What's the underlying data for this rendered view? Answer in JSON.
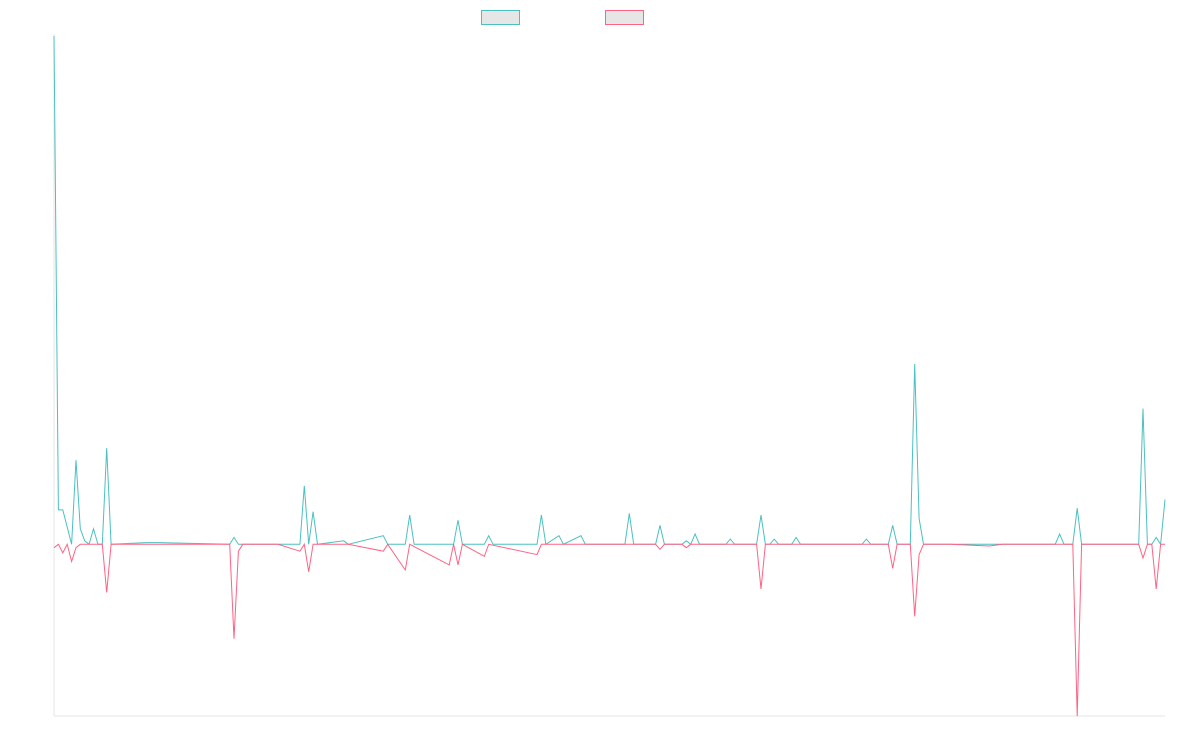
{
  "chart_data": {
    "type": "line",
    "title": "",
    "xlabel": "",
    "ylabel": "",
    "legend": "top-center",
    "grid": false,
    "ylim": [
      -100,
      296
    ],
    "xlim": [
      0,
      253
    ],
    "series": [
      {
        "color": "#4bc0c0",
        "fill": "none",
        "legend_fill": "#e6e6e6",
        "points": [
          [
            0,
            296
          ],
          [
            1,
            20
          ],
          [
            2,
            20
          ],
          [
            4,
            0
          ],
          [
            5,
            49
          ],
          [
            6,
            9
          ],
          [
            7,
            2
          ],
          [
            8,
            0
          ],
          [
            9,
            9
          ],
          [
            10,
            0
          ],
          [
            11,
            0
          ],
          [
            12,
            56
          ],
          [
            13,
            0
          ],
          [
            21,
            1
          ],
          [
            24,
            1
          ],
          [
            40,
            0
          ],
          [
            41,
            4
          ],
          [
            42,
            0
          ],
          [
            51,
            0
          ],
          [
            56,
            0
          ],
          [
            57,
            34
          ],
          [
            58,
            0
          ],
          [
            59,
            19
          ],
          [
            60,
            0
          ],
          [
            66,
            2
          ],
          [
            67,
            0
          ],
          [
            75,
            5
          ],
          [
            76,
            0
          ],
          [
            80,
            0
          ],
          [
            81,
            17
          ],
          [
            82,
            0
          ],
          [
            90,
            0
          ],
          [
            91,
            0
          ],
          [
            92,
            14
          ],
          [
            93,
            0
          ],
          [
            98,
            0
          ],
          [
            99,
            5
          ],
          [
            100,
            0
          ],
          [
            110,
            0
          ],
          [
            111,
            17
          ],
          [
            112,
            0
          ],
          [
            115,
            5
          ],
          [
            116,
            0
          ],
          [
            120,
            5
          ],
          [
            121,
            0
          ],
          [
            126,
            0
          ],
          [
            130,
            0
          ],
          [
            131,
            18
          ],
          [
            132,
            0
          ],
          [
            137,
            0
          ],
          [
            138,
            11
          ],
          [
            139,
            0
          ],
          [
            141,
            0
          ],
          [
            143,
            0
          ],
          [
            144,
            2
          ],
          [
            145,
            0
          ],
          [
            146,
            6
          ],
          [
            147,
            0
          ],
          [
            148,
            0
          ],
          [
            149,
            0
          ],
          [
            153,
            0
          ],
          [
            154,
            3
          ],
          [
            155,
            0
          ],
          [
            160,
            0
          ],
          [
            161,
            17
          ],
          [
            162,
            0
          ],
          [
            163,
            0
          ],
          [
            164,
            3
          ],
          [
            165,
            0
          ],
          [
            168,
            0
          ],
          [
            169,
            4
          ],
          [
            170,
            0
          ],
          [
            179,
            0
          ],
          [
            184,
            0
          ],
          [
            185,
            3
          ],
          [
            186,
            0
          ],
          [
            190,
            0
          ],
          [
            191,
            11
          ],
          [
            192,
            0
          ],
          [
            193,
            0
          ],
          [
            195,
            0
          ],
          [
            196,
            105
          ],
          [
            197,
            15
          ],
          [
            198,
            0
          ],
          [
            204,
            0
          ],
          [
            213,
            0
          ],
          [
            216,
            0
          ],
          [
            225,
            0
          ],
          [
            228,
            0
          ],
          [
            229,
            6
          ],
          [
            230,
            0
          ],
          [
            232,
            0
          ],
          [
            233,
            21
          ],
          [
            234,
            0
          ],
          [
            247,
            0
          ],
          [
            248,
            79
          ],
          [
            249,
            0
          ],
          [
            250,
            0
          ],
          [
            251,
            4
          ],
          [
            252,
            0
          ],
          [
            253,
            26
          ]
        ]
      },
      {
        "color": "#ff6384",
        "fill": "none",
        "legend_fill": "#e6e6e6",
        "points": [
          [
            0,
            -2
          ],
          [
            1,
            0
          ],
          [
            2,
            -5
          ],
          [
            3,
            0
          ],
          [
            4,
            -10
          ],
          [
            5,
            -2
          ],
          [
            6,
            0
          ],
          [
            11,
            0
          ],
          [
            12,
            -28
          ],
          [
            13,
            0
          ],
          [
            21,
            0
          ],
          [
            24,
            0
          ],
          [
            40,
            0
          ],
          [
            41,
            -55
          ],
          [
            42,
            -4
          ],
          [
            43,
            0
          ],
          [
            51,
            0
          ],
          [
            56,
            -4
          ],
          [
            57,
            0
          ],
          [
            58,
            -16
          ],
          [
            59,
            0
          ],
          [
            66,
            0
          ],
          [
            67,
            0
          ],
          [
            75,
            -4
          ],
          [
            76,
            0
          ],
          [
            80,
            -15
          ],
          [
            81,
            0
          ],
          [
            90,
            -12
          ],
          [
            91,
            0
          ],
          [
            92,
            -12
          ],
          [
            93,
            0
          ],
          [
            98,
            -7
          ],
          [
            99,
            0
          ],
          [
            110,
            -6
          ],
          [
            111,
            0
          ],
          [
            130,
            0
          ],
          [
            137,
            0
          ],
          [
            138,
            -3
          ],
          [
            139,
            0
          ],
          [
            141,
            0
          ],
          [
            143,
            0
          ],
          [
            144,
            -2
          ],
          [
            145,
            0
          ],
          [
            147,
            0
          ],
          [
            148,
            0
          ],
          [
            149,
            0
          ],
          [
            153,
            0
          ],
          [
            160,
            0
          ],
          [
            161,
            -26
          ],
          [
            162,
            0
          ],
          [
            163,
            0
          ],
          [
            168,
            0
          ],
          [
            169,
            0
          ],
          [
            179,
            0
          ],
          [
            184,
            0
          ],
          [
            190,
            0
          ],
          [
            191,
            -14
          ],
          [
            192,
            0
          ],
          [
            195,
            0
          ],
          [
            196,
            -42
          ],
          [
            197,
            -6
          ],
          [
            198,
            0
          ],
          [
            204,
            0
          ],
          [
            213,
            -1
          ],
          [
            216,
            0
          ],
          [
            228,
            0
          ],
          [
            231,
            0
          ],
          [
            232,
            0
          ],
          [
            233,
            -100
          ],
          [
            234,
            0
          ],
          [
            247,
            0
          ],
          [
            248,
            -8
          ],
          [
            249,
            0
          ],
          [
            250,
            0
          ],
          [
            251,
            -26
          ],
          [
            252,
            0
          ],
          [
            253,
            0
          ]
        ]
      }
    ]
  }
}
